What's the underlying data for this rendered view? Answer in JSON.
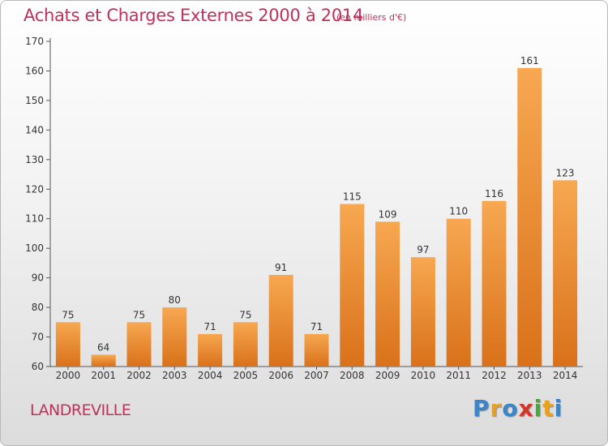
{
  "chart_data": {
    "type": "bar",
    "title": "Achats et Charges Externes 2000 à 2014",
    "subtitle": "(en milliers d'€)",
    "categories": [
      "2000",
      "2001",
      "2002",
      "2003",
      "2004",
      "2005",
      "2006",
      "2007",
      "2008",
      "2009",
      "2010",
      "2011",
      "2012",
      "2013",
      "2014"
    ],
    "values": [
      75,
      64,
      75,
      80,
      71,
      75,
      91,
      71,
      115,
      109,
      97,
      110,
      116,
      161,
      123
    ],
    "yticks": [
      60,
      70,
      80,
      90,
      100,
      110,
      120,
      130,
      140,
      150,
      160,
      170
    ],
    "ylim": [
      60,
      170
    ],
    "xlabel": "",
    "ylabel": "",
    "grid": false,
    "bar_color": "#f0922e"
  },
  "commune": "LANDREVILLE",
  "logo": {
    "letters": [
      "P",
      "r",
      "o",
      "x",
      "i",
      "t",
      "i"
    ],
    "colors": [
      "#3a86c8",
      "#e8a020",
      "#3a86c8",
      "#d8342a",
      "#4aa83a",
      "#e8a020",
      "#3a86c8"
    ]
  }
}
